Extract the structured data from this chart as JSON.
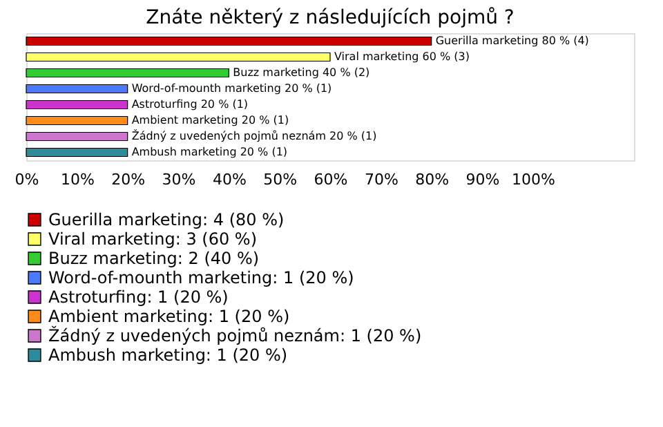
{
  "chart_data": {
    "type": "bar",
    "orientation": "horizontal",
    "stacked": true,
    "title": "Znáte některý z následujících pojmů ?",
    "categories": [
      null,
      null,
      null,
      null,
      null,
      null,
      null,
      null
    ],
    "series": [
      {
        "name": "Guerilla marketing: 4 (80 %)",
        "color": "#cc0000",
        "values": [
          80,
          0,
          0,
          0,
          0,
          0,
          0,
          0
        ],
        "value_labels": [
          "Guerilla marketing 80 % (4)",
          null,
          null,
          null,
          null,
          null,
          null,
          null
        ]
      },
      {
        "name": "Viral marketing: 3 (60 %)",
        "color": "#ffff66",
        "values": [
          0,
          60,
          0,
          0,
          0,
          0,
          0,
          0
        ],
        "value_labels": [
          null,
          "Viral marketing 60 % (3)",
          null,
          null,
          null,
          null,
          null,
          null
        ]
      },
      {
        "name": "Buzz marketing: 2 (40 %)",
        "color": "#33cc33",
        "values": [
          0,
          0,
          40,
          0,
          0,
          0,
          0,
          0
        ],
        "value_labels": [
          null,
          null,
          "Buzz marketing 40 % (2)",
          null,
          null,
          null,
          null,
          null
        ]
      },
      {
        "name": "Word-of-mounth marketing: 1 (20 %)",
        "color": "#4d79ff",
        "values": [
          0,
          0,
          0,
          20,
          0,
          0,
          0,
          0
        ],
        "value_labels": [
          null,
          null,
          null,
          "Word-of-mounth marketing 20 % (1)",
          null,
          null,
          null,
          null
        ]
      },
      {
        "name": "Astroturfing: 1 (20 %)",
        "color": "#cc33cc",
        "values": [
          0,
          0,
          0,
          0,
          20,
          0,
          0,
          0
        ],
        "value_labels": [
          null,
          null,
          null,
          null,
          "Astroturfing 20 % (1)",
          null,
          null,
          null
        ]
      },
      {
        "name": "Ambient marketing: 1 (20 %)",
        "color": "#ff8c1a",
        "values": [
          0,
          0,
          0,
          0,
          0,
          20,
          0,
          0
        ],
        "value_labels": [
          null,
          null,
          null,
          null,
          null,
          "Ambient marketing 20 % (1)",
          null,
          null
        ]
      },
      {
        "name": "Žádný z uvedených pojmů neznám: 1 (20 %)",
        "color": "#cc77cc",
        "values": [
          0,
          0,
          0,
          0,
          0,
          0,
          20,
          0
        ],
        "value_labels": [
          null,
          null,
          null,
          null,
          null,
          null,
          "Žádný z uvedených pojmů neznám 20 % (1)",
          null
        ]
      },
      {
        "name": "Ambush marketing: 1 (20 %)",
        "color": "#2e8b9a",
        "values": [
          0,
          0,
          0,
          0,
          0,
          0,
          0,
          20
        ],
        "value_labels": [
          null,
          null,
          null,
          null,
          null,
          null,
          null,
          "Ambush marketing 20 % (1)"
        ]
      }
    ],
    "xlim": [
      0,
      120
    ],
    "xticks": [
      {
        "value": 0,
        "label": "0%"
      },
      {
        "value": 10,
        "label": "10%"
      },
      {
        "value": 20,
        "label": "20%"
      },
      {
        "value": 30,
        "label": "30%"
      },
      {
        "value": 40,
        "label": "40%"
      },
      {
        "value": 50,
        "label": "50%"
      },
      {
        "value": 60,
        "label": "60%"
      },
      {
        "value": 70,
        "label": "70%"
      },
      {
        "value": 80,
        "label": "80%"
      },
      {
        "value": 90,
        "label": "90%"
      },
      {
        "value": 100,
        "label": "100%"
      }
    ],
    "tick_labels": "x",
    "grid": false,
    "legend": "bottom"
  }
}
